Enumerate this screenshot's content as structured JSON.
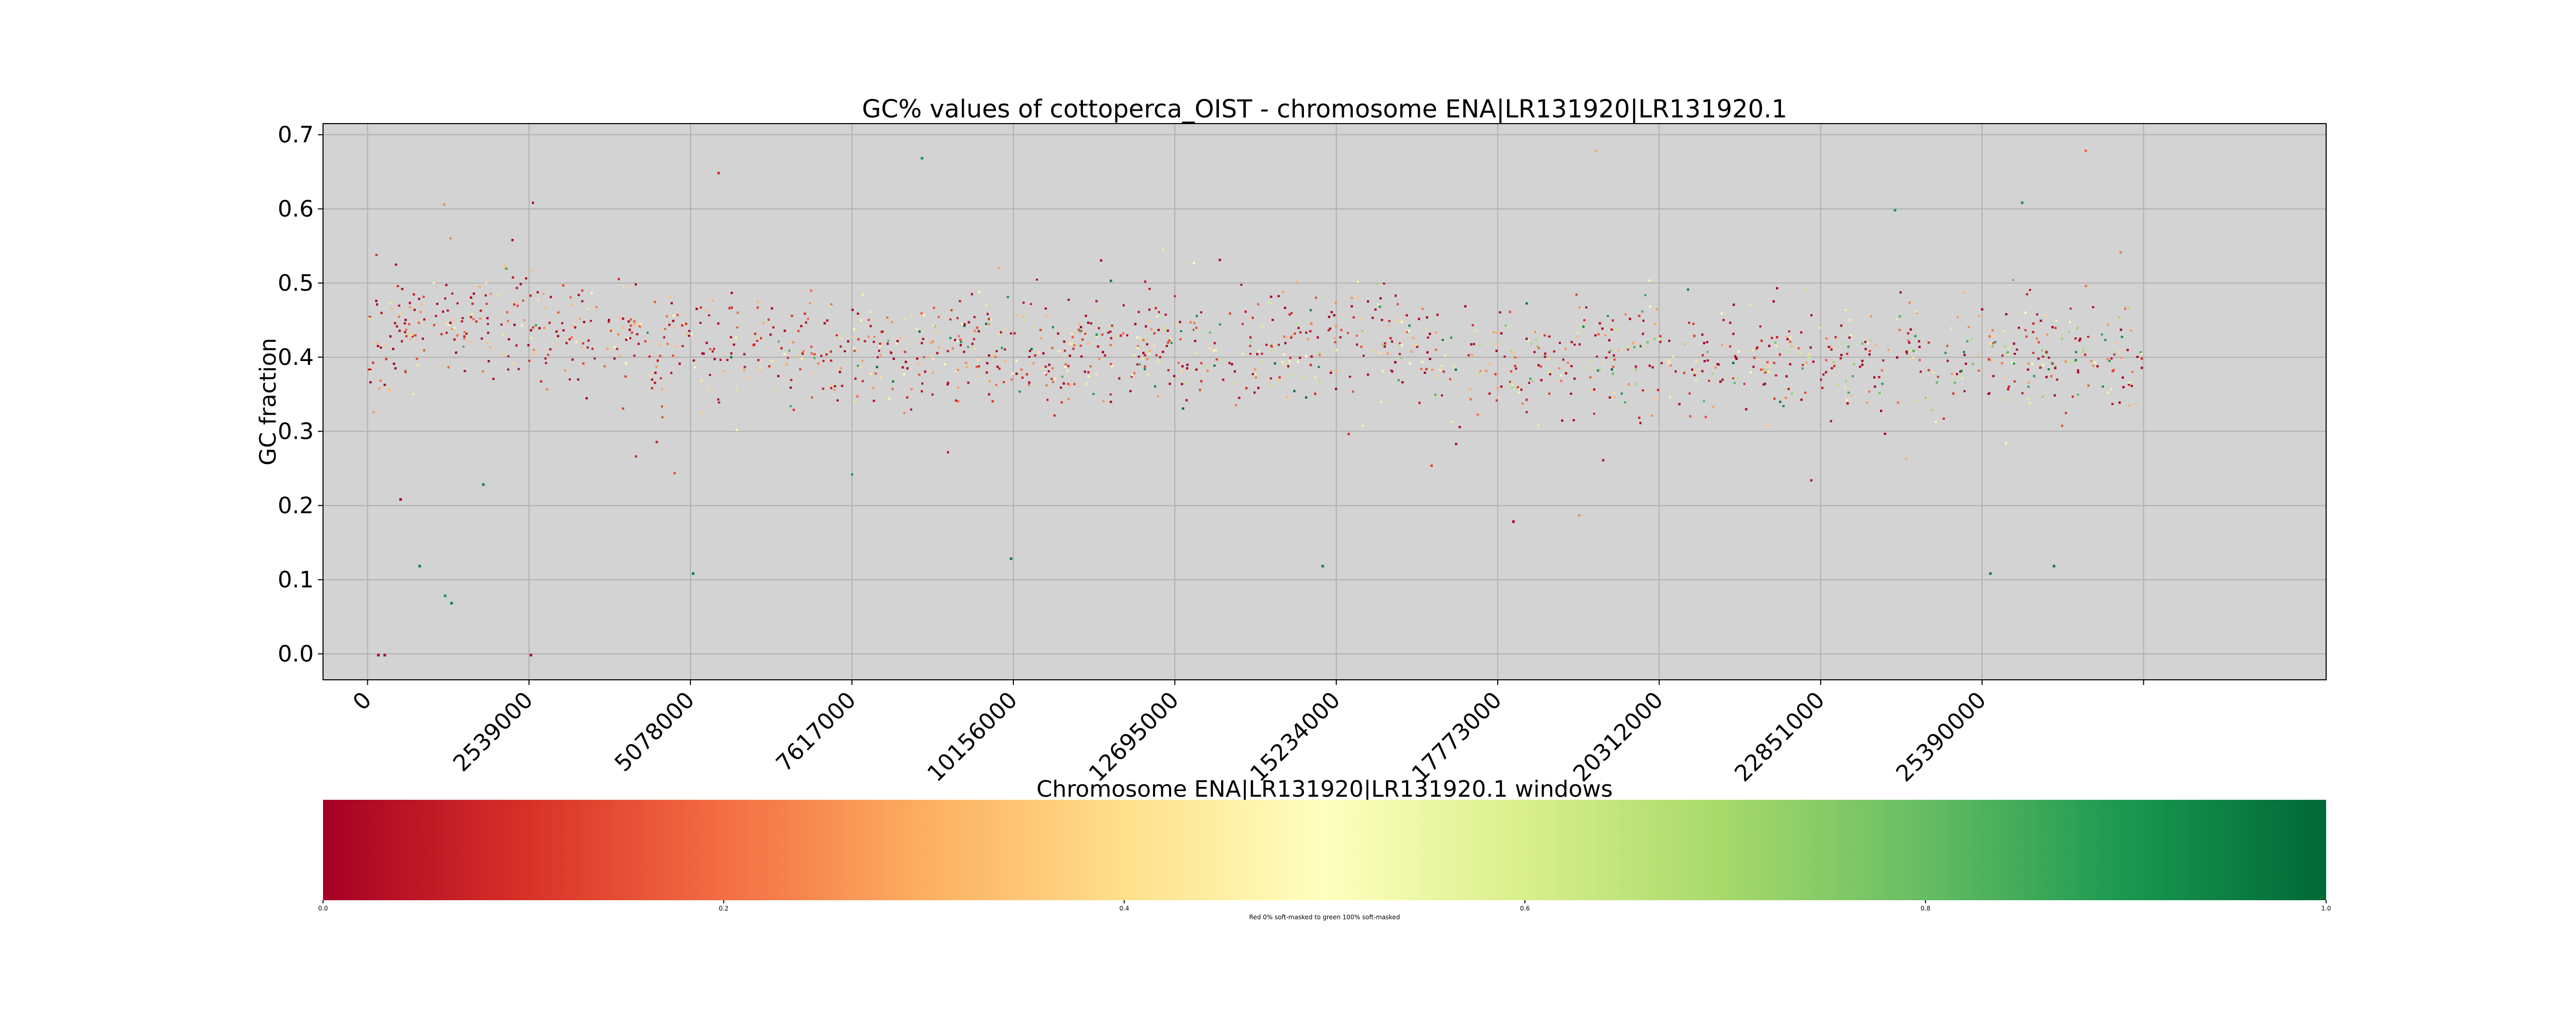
{
  "chart_data": [
    {
      "type": "scatter",
      "title": "GC% values of cottoperca_OIST - chromosome ENA|LR131920|LR131920.1",
      "xlabel": "Chromosome ENA|LR131920|LR131920.1 windows",
      "ylabel": "GC fraction",
      "xlim": [
        -700000,
        30800000
      ],
      "ylim": [
        -0.035,
        0.715
      ],
      "x_ticks": [
        0,
        2539000,
        5078000,
        7617000,
        10156000,
        12695000,
        15234000,
        17773000,
        20312000,
        22851000,
        25390000
      ],
      "x_tick_labels": [
        "0",
        "2539000",
        "5078000",
        "7617000",
        "10156000",
        "12695000",
        "15234000",
        "17773000",
        "20312000",
        "22851000",
        "25390000"
      ],
      "extra_x_tick_mark": 27929000,
      "y_ticks": [
        0.0,
        0.1,
        0.2,
        0.3,
        0.4,
        0.5,
        0.6,
        0.7
      ],
      "y_tick_labels": [
        "0.0",
        "0.1",
        "0.2",
        "0.3",
        "0.4",
        "0.5",
        "0.6",
        "0.7"
      ],
      "grid": true,
      "background": "#d3d3d3",
      "x_range_of_data": [
        0,
        27900000
      ],
      "color_encoding": "fraction soft-masked (0 = red, 1 = green)",
      "colormap": [
        "#a50026",
        "#d73027",
        "#f46d43",
        "#fdae61",
        "#fee08b",
        "#ffffbf",
        "#d9ef8b",
        "#a6d96a",
        "#66bd63",
        "#1a9850",
        "#006837"
      ],
      "trend": [
        {
          "x": 0,
          "gc": 0.42
        },
        {
          "x": 500000,
          "gc": 0.44
        },
        {
          "x": 2000000,
          "gc": 0.45
        },
        {
          "x": 4000000,
          "gc": 0.43
        },
        {
          "x": 6000000,
          "gc": 0.41
        },
        {
          "x": 8000000,
          "gc": 0.4
        },
        {
          "x": 10000000,
          "gc": 0.41
        },
        {
          "x": 12000000,
          "gc": 0.41
        },
        {
          "x": 14000000,
          "gc": 0.41
        },
        {
          "x": 15800000,
          "gc": 0.43
        },
        {
          "x": 17000000,
          "gc": 0.39
        },
        {
          "x": 19000000,
          "gc": 0.41
        },
        {
          "x": 21000000,
          "gc": 0.4
        },
        {
          "x": 23000000,
          "gc": 0.4
        },
        {
          "x": 25000000,
          "gc": 0.4
        },
        {
          "x": 27900000,
          "gc": 0.4
        }
      ],
      "notable_points": [
        {
          "x": 150000,
          "gc": 0.0,
          "masked": 0.0
        },
        {
          "x": 250000,
          "gc": 0.0,
          "masked": 0.0
        },
        {
          "x": 2550000,
          "gc": 0.0,
          "masked": 0.0
        },
        {
          "x": 1200000,
          "gc": 0.08,
          "masked": 0.9
        },
        {
          "x": 1300000,
          "gc": 0.07,
          "masked": 0.95
        },
        {
          "x": 800000,
          "gc": 0.12,
          "masked": 0.95
        },
        {
          "x": 500000,
          "gc": 0.21,
          "masked": 0.0
        },
        {
          "x": 1800000,
          "gc": 0.23,
          "masked": 0.95
        },
        {
          "x": 5100000,
          "gc": 0.11,
          "masked": 0.95
        },
        {
          "x": 10100000,
          "gc": 0.13,
          "masked": 0.95
        },
        {
          "x": 15000000,
          "gc": 0.12,
          "masked": 0.95
        },
        {
          "x": 18000000,
          "gc": 0.18,
          "masked": 0.0
        },
        {
          "x": 5500000,
          "gc": 0.65,
          "masked": 0.1
        },
        {
          "x": 8700000,
          "gc": 0.67,
          "masked": 0.9
        },
        {
          "x": 19300000,
          "gc": 0.68,
          "masked": 0.3
        },
        {
          "x": 27000000,
          "gc": 0.68,
          "masked": 0.2
        },
        {
          "x": 24000000,
          "gc": 0.6,
          "masked": 0.9
        },
        {
          "x": 26000000,
          "gc": 0.61,
          "masked": 0.9
        },
        {
          "x": 26500000,
          "gc": 0.12,
          "masked": 0.95
        },
        {
          "x": 25500000,
          "gc": 0.11,
          "masked": 0.95
        }
      ]
    },
    {
      "type": "colorbar",
      "range": [
        0.0,
        1.0
      ],
      "ticks": [
        0.0,
        0.2,
        0.4,
        0.6,
        0.8,
        1.0
      ],
      "tick_labels": [
        "0.0",
        "0.2",
        "0.4",
        "0.6",
        "0.8",
        "1.0"
      ],
      "label": "Red 0% soft-masked to green 100% soft-masked"
    }
  ]
}
